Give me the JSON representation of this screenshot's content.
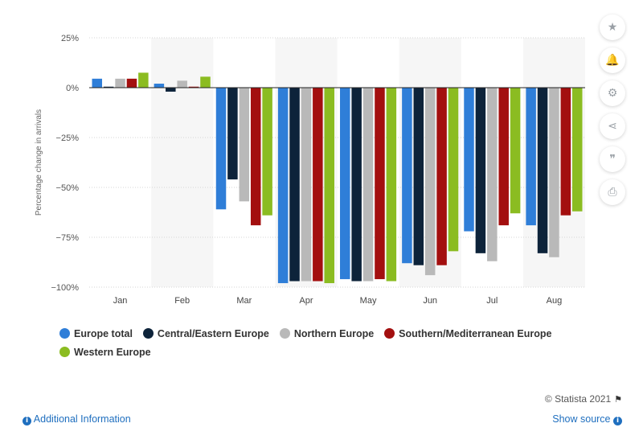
{
  "toolbar": {
    "items": [
      {
        "name": "favorite",
        "icon": "star-icon",
        "glyph": "★"
      },
      {
        "name": "notification",
        "icon": "bell-icon",
        "glyph": "🔔"
      },
      {
        "name": "settings",
        "icon": "gear-icon",
        "glyph": "⚙"
      },
      {
        "name": "share",
        "icon": "share-icon",
        "glyph": "⋖"
      },
      {
        "name": "cite",
        "icon": "quote-icon",
        "glyph": "❞"
      },
      {
        "name": "print",
        "icon": "print-icon",
        "glyph": "⎙"
      }
    ]
  },
  "chart_data": {
    "type": "bar",
    "title": "",
    "xlabel": "",
    "ylabel": "Percentage change in arrivals",
    "ylim": [
      -100,
      25
    ],
    "yticks": [
      25,
      0,
      -25,
      -50,
      -75,
      -100
    ],
    "ytick_labels": [
      "25%",
      "0%",
      "−25%",
      "−50%",
      "−75%",
      "−100%"
    ],
    "categories": [
      "Jan",
      "Feb",
      "Mar",
      "Apr",
      "May",
      "Jun",
      "Jul",
      "Aug"
    ],
    "grid": true,
    "legend_position": "bottom",
    "series": [
      {
        "name": "Europe total",
        "color": "#2f7ed8",
        "values": [
          4.5,
          2,
          -61,
          -98,
          -96,
          -88,
          -72,
          -69
        ]
      },
      {
        "name": "Central/Eastern Europe",
        "color": "#0d233a",
        "values": [
          0.5,
          -2,
          -46,
          -97,
          -97,
          -89,
          -83,
          -83
        ]
      },
      {
        "name": "Northern Europe",
        "color": "#b9b9b9",
        "values": [
          4.5,
          3.5,
          -57,
          -97,
          -97,
          -94,
          -87,
          -85
        ]
      },
      {
        "name": "Southern/Mediterranean Europe",
        "color": "#a30f0f",
        "values": [
          4.5,
          0.5,
          -69,
          -97,
          -96,
          -89,
          -69,
          -64
        ]
      },
      {
        "name": "Western Europe",
        "color": "#8bbc21",
        "values": [
          7.5,
          5.5,
          -64,
          -98,
          -97,
          -82,
          -63,
          -62
        ]
      }
    ]
  },
  "footer": {
    "credit": "© Statista 2021",
    "additional_info": "Additional Information",
    "show_source": "Show source"
  }
}
